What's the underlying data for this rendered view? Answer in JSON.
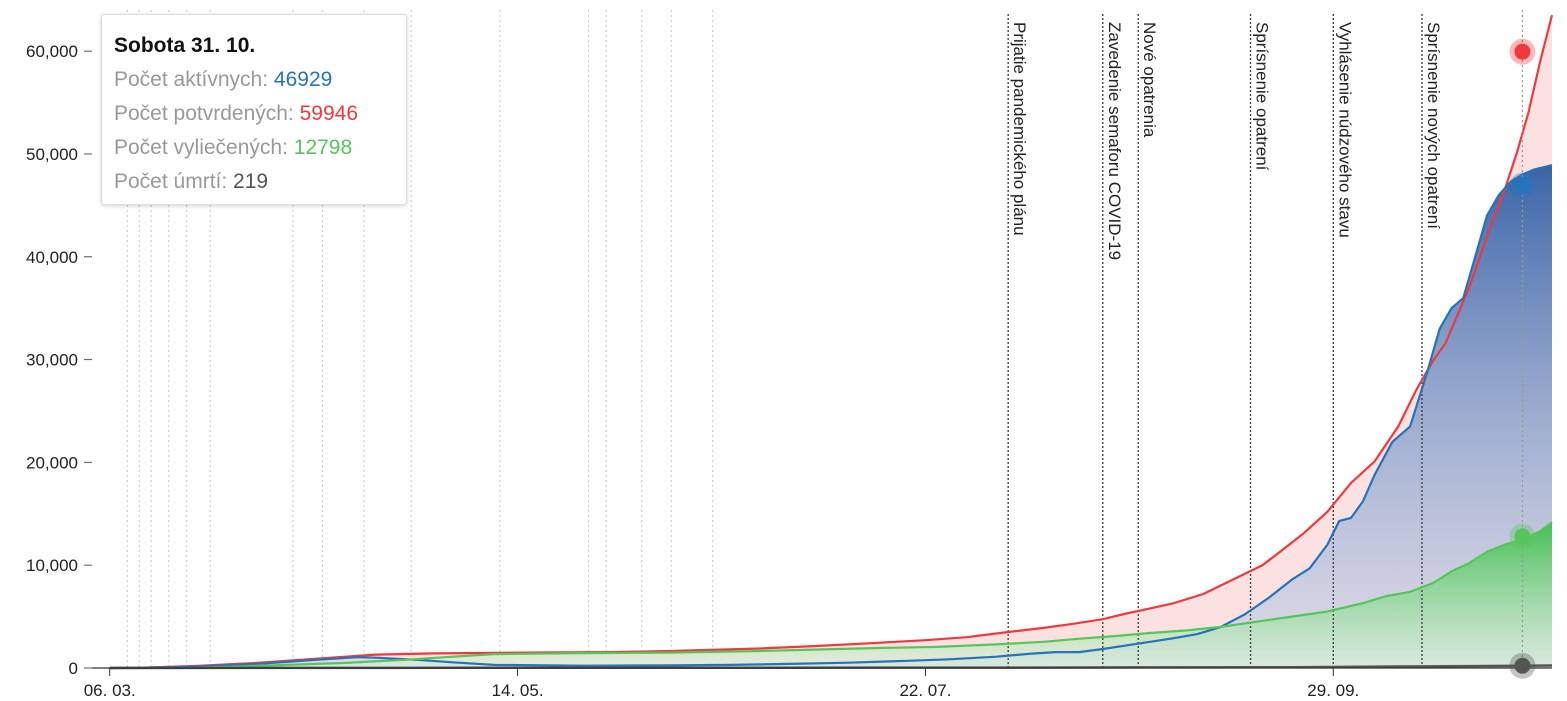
{
  "chart_data": {
    "type": "area",
    "x_ticks": [
      "06. 03.",
      "14. 05.",
      "22. 07.",
      "29. 09."
    ],
    "y_ticks": [
      "0",
      "10,000",
      "20,000",
      "30,000",
      "40,000",
      "50,000",
      "60,000"
    ],
    "ylim": [
      0,
      64000
    ],
    "x_day_range": [
      -3,
      244
    ],
    "x_start_date": "2020-03-06",
    "grid": "vertical dotted event lines",
    "series": [
      {
        "key": "confirmed",
        "color": "#f0393e",
        "points": [
          [
            0,
            0
          ],
          [
            5,
            30
          ],
          [
            15,
            200
          ],
          [
            25,
            500
          ],
          [
            35,
            900
          ],
          [
            45,
            1300
          ],
          [
            55,
            1420
          ],
          [
            70,
            1500
          ],
          [
            85,
            1550
          ],
          [
            95,
            1650
          ],
          [
            110,
            1900
          ],
          [
            120,
            2150
          ],
          [
            130,
            2450
          ],
          [
            138,
            2700
          ],
          [
            145,
            3000
          ],
          [
            152,
            3500
          ],
          [
            158,
            3900
          ],
          [
            163,
            4300
          ],
          [
            168,
            4750
          ],
          [
            172,
            5300
          ],
          [
            176,
            5800
          ],
          [
            180,
            6300
          ],
          [
            185,
            7200
          ],
          [
            190,
            8600
          ],
          [
            195,
            10000
          ],
          [
            198,
            11300
          ],
          [
            202,
            13100
          ],
          [
            206,
            15200
          ],
          [
            210,
            18000
          ],
          [
            214,
            20100
          ],
          [
            218,
            23500
          ],
          [
            221,
            27000
          ],
          [
            224,
            30000
          ],
          [
            226,
            31600
          ],
          [
            230,
            37000
          ],
          [
            233,
            42000
          ],
          [
            236,
            46500
          ],
          [
            238,
            50000
          ],
          [
            240,
            54000
          ],
          [
            242,
            59000
          ],
          [
            244,
            63500
          ]
        ]
      },
      {
        "key": "active",
        "color": "#2673bb",
        "points": [
          [
            0,
            0
          ],
          [
            5,
            20
          ],
          [
            15,
            150
          ],
          [
            25,
            400
          ],
          [
            35,
            800
          ],
          [
            42,
            1050
          ],
          [
            45,
            1000
          ],
          [
            52,
            800
          ],
          [
            58,
            550
          ],
          [
            65,
            300
          ],
          [
            80,
            220
          ],
          [
            95,
            250
          ],
          [
            105,
            300
          ],
          [
            115,
            400
          ],
          [
            125,
            520
          ],
          [
            135,
            700
          ],
          [
            142,
            850
          ],
          [
            150,
            1100
          ],
          [
            156,
            1400
          ],
          [
            160,
            1550
          ],
          [
            164,
            1550
          ],
          [
            168,
            1850
          ],
          [
            172,
            2200
          ],
          [
            176,
            2550
          ],
          [
            180,
            2900
          ],
          [
            184,
            3300
          ],
          [
            188,
            4000
          ],
          [
            192,
            5200
          ],
          [
            196,
            6800
          ],
          [
            200,
            8600
          ],
          [
            203,
            9700
          ],
          [
            206,
            12000
          ],
          [
            208,
            14300
          ],
          [
            210,
            14600
          ],
          [
            212,
            16200
          ],
          [
            214,
            18800
          ],
          [
            217,
            22000
          ],
          [
            220,
            23500
          ],
          [
            223,
            29000
          ],
          [
            225,
            33000
          ],
          [
            227,
            35000
          ],
          [
            229,
            36000
          ],
          [
            231,
            40000
          ],
          [
            233,
            44000
          ],
          [
            235,
            46000
          ],
          [
            237,
            47300
          ],
          [
            239,
            48000
          ],
          [
            241,
            48500
          ],
          [
            244,
            48900
          ]
        ]
      },
      {
        "key": "recovered",
        "color": "#55c65a",
        "points": [
          [
            0,
            0
          ],
          [
            15,
            30
          ],
          [
            30,
            300
          ],
          [
            40,
            500
          ],
          [
            50,
            800
          ],
          [
            58,
            1100
          ],
          [
            65,
            1350
          ],
          [
            80,
            1450
          ],
          [
            95,
            1500
          ],
          [
            110,
            1650
          ],
          [
            120,
            1800
          ],
          [
            130,
            1950
          ],
          [
            140,
            2050
          ],
          [
            150,
            2300
          ],
          [
            158,
            2550
          ],
          [
            164,
            2850
          ],
          [
            170,
            3100
          ],
          [
            176,
            3400
          ],
          [
            182,
            3650
          ],
          [
            188,
            4000
          ],
          [
            194,
            4500
          ],
          [
            200,
            5000
          ],
          [
            206,
            5500
          ],
          [
            212,
            6300
          ],
          [
            216,
            7000
          ],
          [
            220,
            7400
          ],
          [
            224,
            8300
          ],
          [
            227,
            9400
          ],
          [
            230,
            10200
          ],
          [
            233,
            11300
          ],
          [
            236,
            12000
          ],
          [
            239,
            12500
          ],
          [
            242,
            13300
          ],
          [
            244,
            14200
          ]
        ]
      },
      {
        "key": "deaths",
        "color": "#555555",
        "points": [
          [
            0,
            0
          ],
          [
            60,
            20
          ],
          [
            150,
            40
          ],
          [
            200,
            80
          ],
          [
            230,
            180
          ],
          [
            244,
            240
          ]
        ]
      }
    ],
    "markers": [
      {
        "key": "confirmed",
        "value": 59946
      },
      {
        "key": "active",
        "value": 46929
      },
      {
        "key": "recovered",
        "value": 12798
      },
      {
        "key": "deaths",
        "value": 219
      }
    ],
    "marker_day": 239,
    "events": [
      {
        "day": 152,
        "label": "Prijatie pandemického plánu"
      },
      {
        "day": 168,
        "label": "Zavedenie semaforu COVID-19"
      },
      {
        "day": 174,
        "label": "Nové opatrenia"
      },
      {
        "day": 193,
        "label": "Sprísnenie opatrení"
      },
      {
        "day": 207,
        "label": "Vyhlásenie núdzového stavu"
      },
      {
        "day": 222,
        "label": "Sprísnenie nových opatrení"
      }
    ],
    "minor_event_days": [
      3,
      5,
      7,
      10,
      13,
      17,
      31,
      36,
      43,
      51,
      66,
      81,
      84,
      90,
      95,
      102,
      239
    ],
    "tooltip": {
      "date": "Sobota 31. 10.",
      "rows": [
        {
          "label": "Počet aktívnych:",
          "value": "46929",
          "color": "#2673bb"
        },
        {
          "label": "Počet potvrdených:",
          "value": "59946",
          "color": "#f0393e"
        },
        {
          "label": "Počet vyliečených:",
          "value": "12798",
          "color": "#55c65a"
        },
        {
          "label": "Počet úmrtí:",
          "value": "219",
          "color": "#555555"
        }
      ]
    }
  }
}
